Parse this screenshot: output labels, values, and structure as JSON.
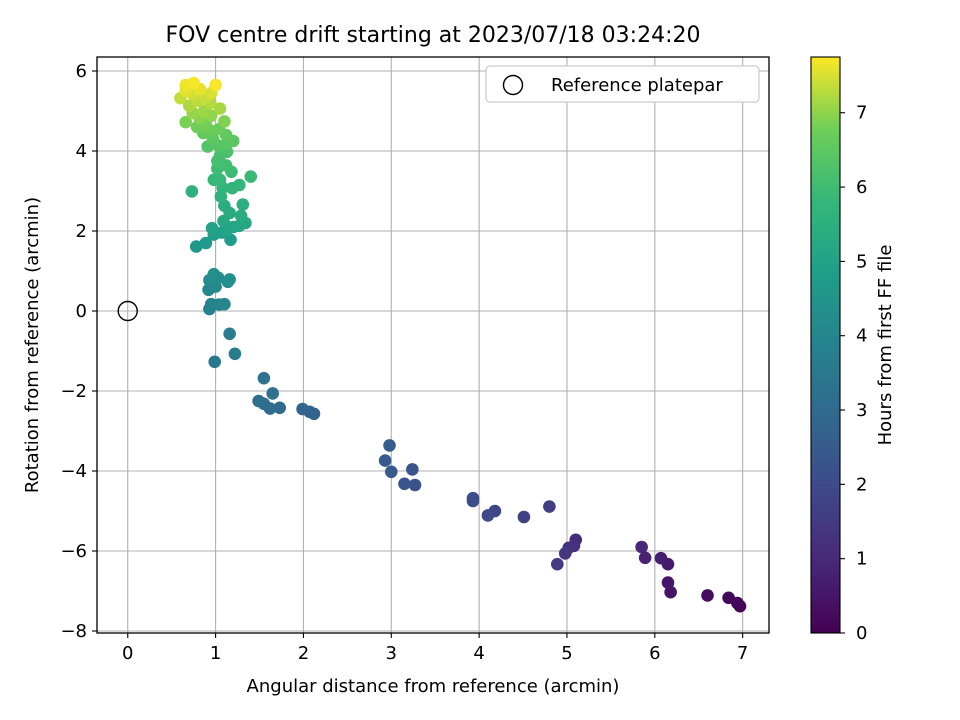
{
  "chart_data": {
    "type": "scatter",
    "title": "FOV centre drift starting at 2023/07/18 03:24:20",
    "xlabel": "Angular distance from reference (arcmin)",
    "ylabel": "Rotation from reference (arcmin)",
    "xlim": [
      -0.35,
      7.3
    ],
    "ylim": [
      -8.05,
      6.35
    ],
    "xticks": [
      0,
      1,
      2,
      3,
      4,
      5,
      6,
      7
    ],
    "yticks": [
      -8,
      -6,
      -4,
      -2,
      0,
      2,
      4,
      6
    ],
    "xtick_labels": [
      "0",
      "1",
      "2",
      "3",
      "4",
      "5",
      "6",
      "7"
    ],
    "ytick_labels": [
      "−8",
      "−6",
      "−4",
      "−2",
      "0",
      "2",
      "4",
      "6"
    ],
    "grid": true,
    "legend": {
      "position": "top-right",
      "entries": [
        {
          "label": "Reference platepar",
          "marker": "open-circle"
        }
      ]
    },
    "reference_point": {
      "x": 0,
      "y": 0
    },
    "colorbar": {
      "label": "Hours from first FF file",
      "colormap": "viridis",
      "range": [
        0,
        7.75
      ],
      "ticks": [
        0,
        1,
        2,
        3,
        4,
        5,
        6,
        7
      ],
      "tick_labels": [
        "0",
        "1",
        "2",
        "3",
        "4",
        "5",
        "6",
        "7"
      ]
    },
    "points": [
      {
        "x": 6.97,
        "y": -7.38,
        "t": 0.05
      },
      {
        "x": 6.94,
        "y": -7.3,
        "t": 0.12
      },
      {
        "x": 6.84,
        "y": -7.17,
        "t": 0.2
      },
      {
        "x": 6.6,
        "y": -7.11,
        "t": 0.3
      },
      {
        "x": 6.18,
        "y": -7.03,
        "t": 0.45
      },
      {
        "x": 6.15,
        "y": -6.79,
        "t": 0.55
      },
      {
        "x": 6.15,
        "y": -6.33,
        "t": 0.65
      },
      {
        "x": 6.07,
        "y": -6.18,
        "t": 0.75
      },
      {
        "x": 5.89,
        "y": -6.17,
        "t": 0.85
      },
      {
        "x": 5.85,
        "y": -5.9,
        "t": 0.95
      },
      {
        "x": 5.1,
        "y": -5.72,
        "t": 1.1
      },
      {
        "x": 5.08,
        "y": -5.87,
        "t": 1.2
      },
      {
        "x": 5.02,
        "y": -5.92,
        "t": 1.3
      },
      {
        "x": 4.98,
        "y": -6.06,
        "t": 1.4
      },
      {
        "x": 4.89,
        "y": -6.33,
        "t": 1.5
      },
      {
        "x": 4.8,
        "y": -4.89,
        "t": 1.6
      },
      {
        "x": 4.51,
        "y": -5.15,
        "t": 1.7
      },
      {
        "x": 4.18,
        "y": -5.0,
        "t": 1.85
      },
      {
        "x": 4.1,
        "y": -5.11,
        "t": 1.95
      },
      {
        "x": 3.93,
        "y": -4.75,
        "t": 2.05
      },
      {
        "x": 3.93,
        "y": -4.68,
        "t": 2.1
      },
      {
        "x": 3.27,
        "y": -4.35,
        "t": 2.2
      },
      {
        "x": 3.15,
        "y": -4.32,
        "t": 2.3
      },
      {
        "x": 3.24,
        "y": -3.96,
        "t": 2.35
      },
      {
        "x": 3.0,
        "y": -4.02,
        "t": 2.45
      },
      {
        "x": 2.93,
        "y": -3.74,
        "t": 2.5
      },
      {
        "x": 2.98,
        "y": -3.36,
        "t": 2.6
      },
      {
        "x": 2.12,
        "y": -2.57,
        "t": 2.75
      },
      {
        "x": 2.07,
        "y": -2.52,
        "t": 2.8
      },
      {
        "x": 1.99,
        "y": -2.45,
        "t": 2.85
      },
      {
        "x": 1.73,
        "y": -2.42,
        "t": 3.0
      },
      {
        "x": 1.62,
        "y": -2.44,
        "t": 3.05
      },
      {
        "x": 1.55,
        "y": -2.32,
        "t": 3.1
      },
      {
        "x": 1.49,
        "y": -2.25,
        "t": 3.15
      },
      {
        "x": 1.65,
        "y": -2.06,
        "t": 3.2
      },
      {
        "x": 1.55,
        "y": -1.68,
        "t": 3.3
      },
      {
        "x": 0.99,
        "y": -1.27,
        "t": 3.5
      },
      {
        "x": 1.22,
        "y": -1.07,
        "t": 3.6
      },
      {
        "x": 1.16,
        "y": -0.57,
        "t": 3.7
      },
      {
        "x": 0.93,
        "y": 0.05,
        "t": 3.85
      },
      {
        "x": 0.95,
        "y": 0.17,
        "t": 3.9
      },
      {
        "x": 1.04,
        "y": 0.16,
        "t": 3.95
      },
      {
        "x": 1.1,
        "y": 0.17,
        "t": 4.0
      },
      {
        "x": 0.92,
        "y": 0.53,
        "t": 4.05
      },
      {
        "x": 1.0,
        "y": 0.61,
        "t": 4.1
      },
      {
        "x": 1.14,
        "y": 0.73,
        "t": 4.15
      },
      {
        "x": 0.93,
        "y": 0.77,
        "t": 4.2
      },
      {
        "x": 1.03,
        "y": 0.83,
        "t": 4.25
      },
      {
        "x": 0.98,
        "y": 0.92,
        "t": 4.3
      },
      {
        "x": 1.16,
        "y": 0.79,
        "t": 4.35
      },
      {
        "x": 0.78,
        "y": 1.61,
        "t": 4.6
      },
      {
        "x": 0.89,
        "y": 1.7,
        "t": 4.7
      },
      {
        "x": 1.17,
        "y": 1.78,
        "t": 4.8
      },
      {
        "x": 0.98,
        "y": 1.91,
        "t": 4.9
      },
      {
        "x": 1.07,
        "y": 1.96,
        "t": 4.95
      },
      {
        "x": 0.96,
        "y": 2.07,
        "t": 5.0
      },
      {
        "x": 1.13,
        "y": 2.03,
        "t": 5.05
      },
      {
        "x": 1.2,
        "y": 2.1,
        "t": 5.1
      },
      {
        "x": 1.27,
        "y": 2.13,
        "t": 5.15
      },
      {
        "x": 1.34,
        "y": 2.2,
        "t": 5.2
      },
      {
        "x": 1.09,
        "y": 2.25,
        "t": 5.25
      },
      {
        "x": 1.16,
        "y": 2.45,
        "t": 5.3
      },
      {
        "x": 1.29,
        "y": 2.38,
        "t": 5.35
      },
      {
        "x": 1.1,
        "y": 2.63,
        "t": 5.4
      },
      {
        "x": 1.31,
        "y": 2.66,
        "t": 5.45
      },
      {
        "x": 0.73,
        "y": 2.99,
        "t": 5.55
      },
      {
        "x": 1.06,
        "y": 2.86,
        "t": 5.6
      },
      {
        "x": 1.08,
        "y": 3.08,
        "t": 5.65
      },
      {
        "x": 1.19,
        "y": 3.07,
        "t": 5.7
      },
      {
        "x": 1.27,
        "y": 3.15,
        "t": 5.75
      },
      {
        "x": 0.98,
        "y": 3.28,
        "t": 5.8
      },
      {
        "x": 1.05,
        "y": 3.28,
        "t": 5.85
      },
      {
        "x": 1.4,
        "y": 3.36,
        "t": 5.9
      },
      {
        "x": 1.18,
        "y": 3.48,
        "t": 5.95
      },
      {
        "x": 1.02,
        "y": 3.56,
        "t": 6.0
      },
      {
        "x": 1.12,
        "y": 3.64,
        "t": 6.05
      },
      {
        "x": 1.02,
        "y": 3.75,
        "t": 6.1
      },
      {
        "x": 1.05,
        "y": 3.88,
        "t": 6.15
      },
      {
        "x": 1.13,
        "y": 3.98,
        "t": 6.2
      },
      {
        "x": 0.91,
        "y": 4.11,
        "t": 6.3
      },
      {
        "x": 1.03,
        "y": 4.14,
        "t": 6.35
      },
      {
        "x": 1.13,
        "y": 4.18,
        "t": 6.4
      },
      {
        "x": 1.2,
        "y": 4.25,
        "t": 6.45
      },
      {
        "x": 0.97,
        "y": 4.3,
        "t": 6.5
      },
      {
        "x": 1.12,
        "y": 4.4,
        "t": 6.55
      },
      {
        "x": 0.86,
        "y": 4.45,
        "t": 6.6
      },
      {
        "x": 0.95,
        "y": 4.5,
        "t": 6.65
      },
      {
        "x": 1.04,
        "y": 4.55,
        "t": 6.7
      },
      {
        "x": 0.79,
        "y": 4.6,
        "t": 6.75
      },
      {
        "x": 0.89,
        "y": 4.64,
        "t": 6.8
      },
      {
        "x": 0.66,
        "y": 4.72,
        "t": 6.85
      },
      {
        "x": 1.1,
        "y": 4.74,
        "t": 6.9
      },
      {
        "x": 0.82,
        "y": 4.82,
        "t": 6.95
      },
      {
        "x": 0.95,
        "y": 4.88,
        "t": 7.0
      },
      {
        "x": 0.74,
        "y": 4.95,
        "t": 7.05
      },
      {
        "x": 0.87,
        "y": 5.0,
        "t": 7.1
      },
      {
        "x": 1.05,
        "y": 5.06,
        "t": 7.15
      },
      {
        "x": 0.7,
        "y": 5.13,
        "t": 7.2
      },
      {
        "x": 0.94,
        "y": 5.2,
        "t": 7.25
      },
      {
        "x": 0.8,
        "y": 5.25,
        "t": 7.3
      },
      {
        "x": 0.6,
        "y": 5.32,
        "t": 7.35
      },
      {
        "x": 0.88,
        "y": 5.35,
        "t": 7.4
      },
      {
        "x": 0.74,
        "y": 5.42,
        "t": 7.45
      },
      {
        "x": 0.95,
        "y": 5.45,
        "t": 7.5
      },
      {
        "x": 0.66,
        "y": 5.5,
        "t": 7.55
      },
      {
        "x": 0.82,
        "y": 5.55,
        "t": 7.6
      },
      {
        "x": 0.66,
        "y": 5.65,
        "t": 7.65
      },
      {
        "x": 0.75,
        "y": 5.7,
        "t": 7.7
      },
      {
        "x": 1.0,
        "y": 5.65,
        "t": 7.72
      }
    ]
  }
}
